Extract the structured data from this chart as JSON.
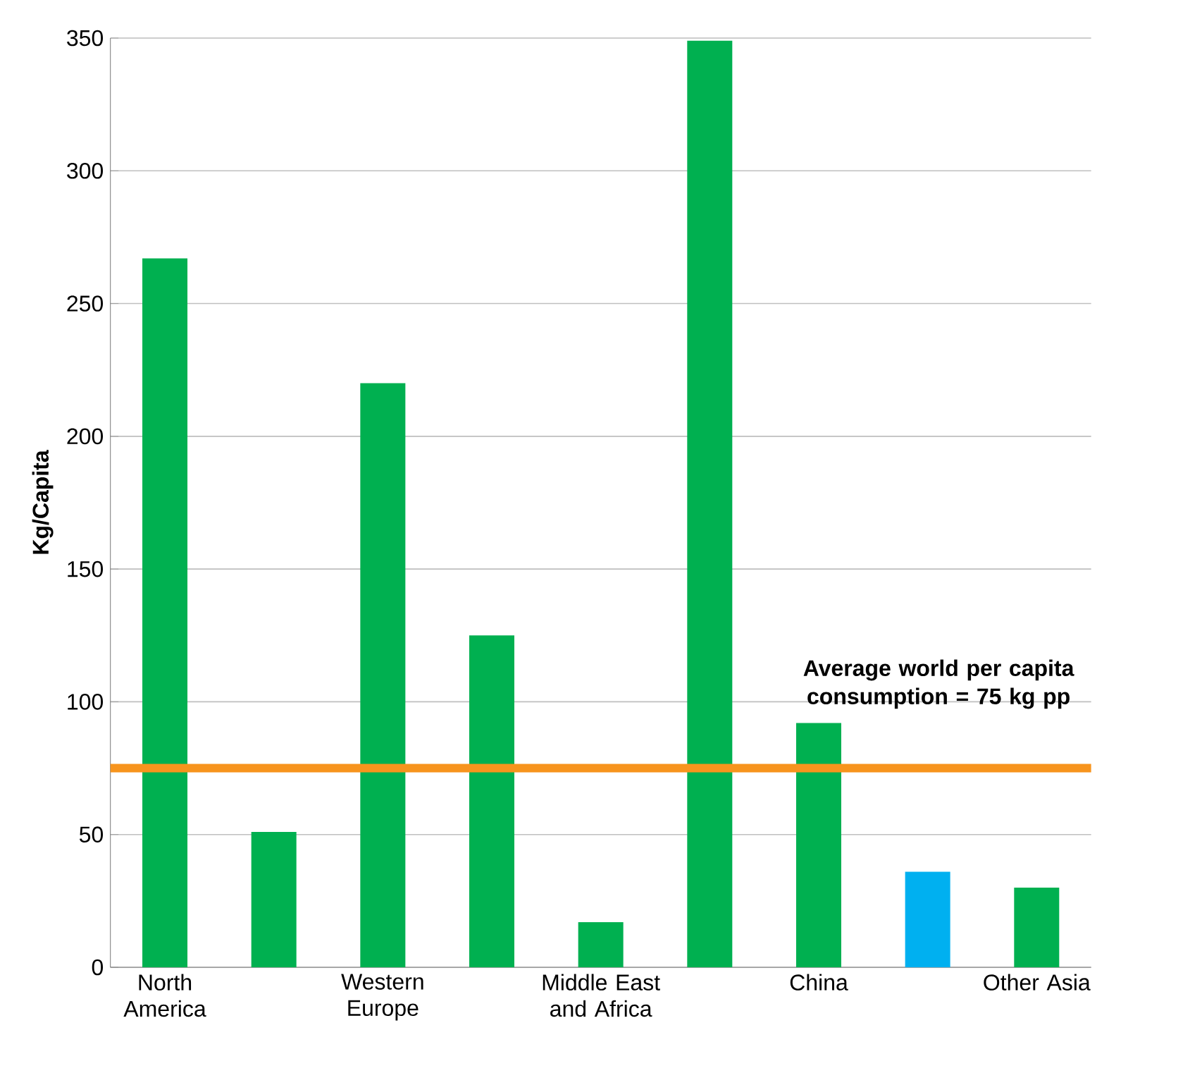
{
  "chart_data": {
    "type": "bar",
    "ylabel": "Kg/Capita",
    "categories": [
      "North America",
      null,
      "Western Europe",
      null,
      "Middle East and Africa",
      null,
      "China",
      null,
      "Other Asia"
    ],
    "values": [
      267,
      51,
      220,
      125,
      17,
      349,
      92,
      36,
      30
    ],
    "colors": [
      "#00b050",
      "#00b050",
      "#00b050",
      "#00b050",
      "#00b050",
      "#00b050",
      "#00b050",
      "#00b0f0",
      "#00b050"
    ],
    "ylim": [
      0,
      350
    ],
    "yticks": [
      0,
      50,
      100,
      150,
      200,
      250,
      300,
      350
    ],
    "grid": "y",
    "ref_lines": [
      {
        "axis": "y",
        "value": 75,
        "label": "Average world per capita consumption = 75 kg pp",
        "color": "#f7941d",
        "line_style": "solid"
      }
    ]
  }
}
